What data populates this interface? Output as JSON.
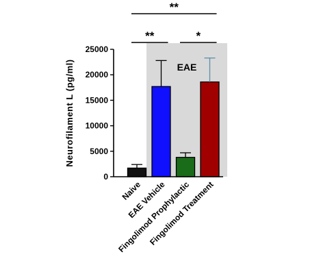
{
  "chart_data": {
    "type": "bar",
    "title": "",
    "xlabel": "",
    "ylabel": "Neurofilament  L (pg/ml)",
    "ylim": [
      0,
      25000
    ],
    "yticks": [
      0,
      5000,
      10000,
      15000,
      20000,
      25000
    ],
    "grid": false,
    "categories": [
      "Naive",
      "EAE Vehicle",
      "Fingolimod Prophylactic",
      "Fingolimod Treatment"
    ],
    "values": [
      1700,
      17700,
      3800,
      18600
    ],
    "error_upper": [
      2400,
      22800,
      4700,
      23300
    ],
    "colors": [
      "#111111",
      "#1010ff",
      "#1a6b1a",
      "#a00000"
    ],
    "error_colors": [
      "#000000",
      "#000000",
      "#000000",
      "#5b8fa8"
    ],
    "shaded_region": {
      "label": "EAE",
      "color": "#d9d9d9",
      "from_category": "EAE Vehicle",
      "to_category": "Fingolimod Treatment"
    },
    "significance": [
      {
        "from": "Naive",
        "to": "Fingolimod Treatment",
        "label": "**"
      },
      {
        "from": "Naive",
        "to": "EAE Vehicle",
        "label": "**"
      },
      {
        "from": "Fingolimod Prophylactic",
        "to": "Fingolimod Treatment",
        "label": "*"
      }
    ]
  }
}
